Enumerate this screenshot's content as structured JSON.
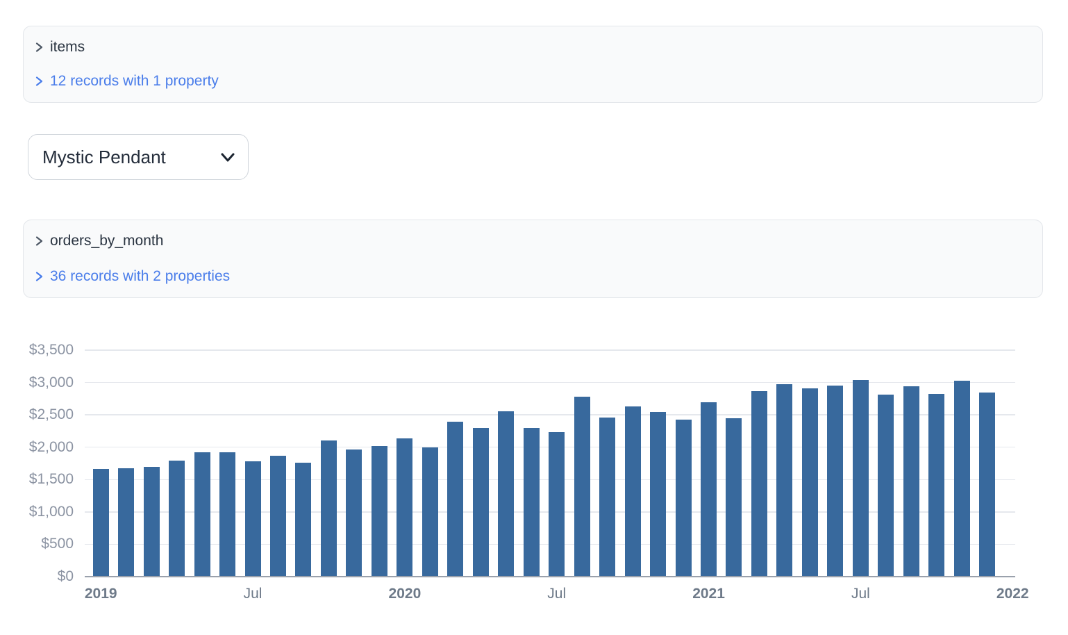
{
  "inspectors": [
    {
      "name": "items",
      "summary": "12 records with 1 property"
    },
    {
      "name": "orders_by_month",
      "summary": "36 records with 2 properties"
    }
  ],
  "select": {
    "value": "Mystic Pendant"
  },
  "icons": {
    "panel_toggle": "chevron-right",
    "select_caret": "chevron-down"
  },
  "colors": {
    "bar": "#38699d",
    "link": "#4a7dea",
    "panel_bg": "#f9fafb",
    "panel_border": "#e3e6ea",
    "gridline": "#e5e8ed",
    "axis_line": "#9aa1ac",
    "y_tick_text": "#8b93a2",
    "x_tick_text": "#6e7a89",
    "title_text": "#2a3441"
  },
  "chart_data": {
    "type": "bar",
    "title": "",
    "xlabel": "",
    "ylabel": "",
    "grid": true,
    "legend": "none",
    "ylim": [
      0,
      3500
    ],
    "x": [
      "Jan 2019",
      "Feb 2019",
      "Mar 2019",
      "Apr 2019",
      "May 2019",
      "Jun 2019",
      "Jul 2019",
      "Aug 2019",
      "Sep 2019",
      "Oct 2019",
      "Nov 2019",
      "Dec 2019",
      "Jan 2020",
      "Feb 2020",
      "Mar 2020",
      "Apr 2020",
      "May 2020",
      "Jun 2020",
      "Jul 2020",
      "Aug 2020",
      "Sep 2020",
      "Oct 2020",
      "Nov 2020",
      "Dec 2020",
      "Jan 2021",
      "Feb 2021",
      "Mar 2021",
      "Apr 2021",
      "May 2021",
      "Jun 2021",
      "Jul 2021",
      "Aug 2021",
      "Sep 2021",
      "Oct 2021",
      "Nov 2021",
      "Dec 2021"
    ],
    "values": [
      1660,
      1680,
      1695,
      1790,
      1925,
      1925,
      1780,
      1870,
      1760,
      2100,
      1960,
      2015,
      2135,
      2000,
      2395,
      2300,
      2560,
      2300,
      2230,
      2780,
      2460,
      2630,
      2545,
      2430,
      2700,
      2445,
      2865,
      2975,
      2905,
      2950,
      3035,
      2810,
      2940,
      2820,
      3030,
      2840
    ],
    "y_ticks": [
      {
        "value": 0,
        "label": "$0"
      },
      {
        "value": 500,
        "label": "$500"
      },
      {
        "value": 1000,
        "label": "$1,000"
      },
      {
        "value": 1500,
        "label": "$1,500"
      },
      {
        "value": 2000,
        "label": "$2,000"
      },
      {
        "value": 2500,
        "label": "$2,500"
      },
      {
        "value": 3000,
        "label": "$3,000"
      },
      {
        "value": 3500,
        "label": "$3,500"
      }
    ],
    "x_ticks": [
      {
        "label": "2019",
        "index": 0,
        "bold": true
      },
      {
        "label": "Jul",
        "index": 6,
        "bold": false
      },
      {
        "label": "2020",
        "index": 12,
        "bold": true
      },
      {
        "label": "Jul",
        "index": 18,
        "bold": false
      },
      {
        "label": "2021",
        "index": 24,
        "bold": true
      },
      {
        "label": "Jul",
        "index": 30,
        "bold": false
      },
      {
        "label": "2022",
        "index": 36,
        "bold": true
      }
    ]
  }
}
